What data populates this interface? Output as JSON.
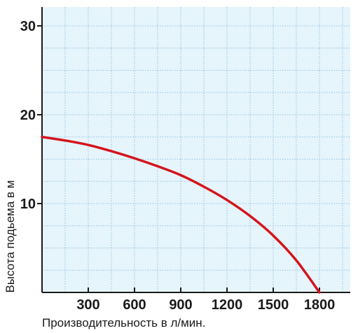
{
  "chart_data": {
    "type": "line",
    "xlabel": "Производительность в л/мин.",
    "ylabel": "Высота подьема в м",
    "xlim": [
      0,
      2000
    ],
    "ylim": [
      0,
      30
    ],
    "x_ticks": [
      300,
      600,
      900,
      1200,
      1500,
      1800
    ],
    "x_tick_labels": [
      "300",
      "600",
      "900",
      "1200",
      "1500",
      "1800"
    ],
    "y_ticks": [
      10,
      20,
      30
    ],
    "y_tick_labels": [
      "10",
      "20",
      "30"
    ],
    "minor_grid_x_step": 150,
    "minor_grid_y_step": 2.5,
    "grid": true,
    "series": [
      {
        "color": "#d4141c",
        "x": [
          0,
          150,
          300,
          450,
          600,
          750,
          900,
          1050,
          1200,
          1350,
          1500,
          1650,
          1800
        ],
        "y": [
          17.5,
          17.1,
          16.6,
          15.9,
          15.1,
          14.2,
          13.2,
          11.9,
          10.4,
          8.6,
          6.4,
          3.6,
          0
        ]
      }
    ],
    "colors": {
      "plot_background": "#e6f4fb",
      "grid": "#8fc3e3",
      "axis": "#1a1a1a"
    }
  }
}
